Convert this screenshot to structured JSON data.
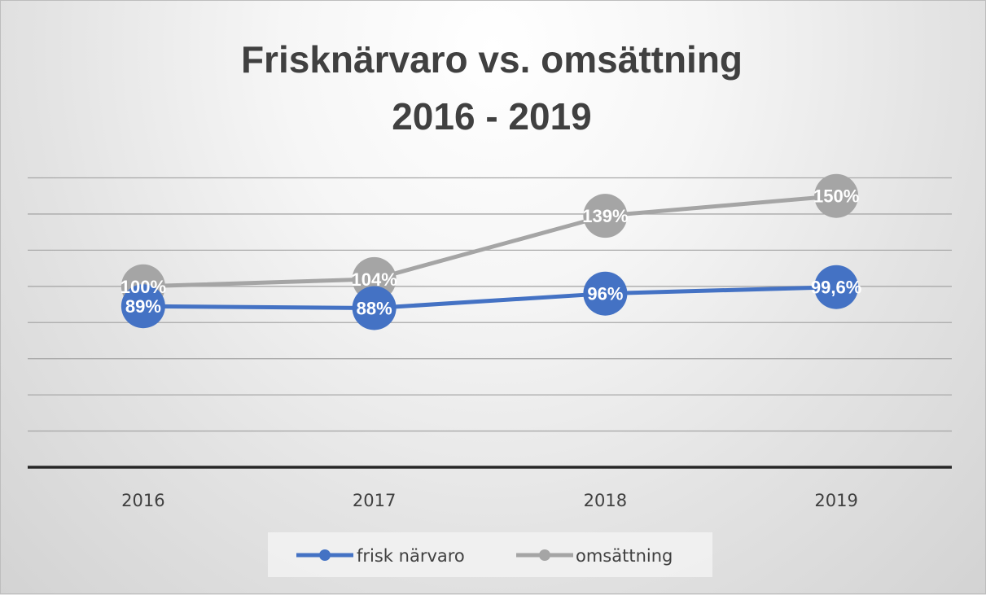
{
  "chart_data": {
    "type": "line",
    "title": [
      "Frisknärvaro vs. omsättning",
      "2016 - 2019"
    ],
    "xlabel": "",
    "ylabel": "",
    "categories": [
      "2016",
      "2017",
      "2018",
      "2019"
    ],
    "ylim": [
      0,
      160
    ],
    "grid": true,
    "legend_position": "bottom",
    "series": [
      {
        "name": "frisk närvaro",
        "values": [
          89,
          88,
          96,
          99.6
        ],
        "labels": [
          "89%",
          "88%",
          "96%",
          "99,6%"
        ],
        "color": "#4472c4"
      },
      {
        "name": "omsättning",
        "values": [
          100,
          104,
          139,
          150
        ],
        "labels": [
          "100%",
          "104%",
          "139%",
          "150%"
        ],
        "color": "#a5a5a5"
      }
    ]
  }
}
